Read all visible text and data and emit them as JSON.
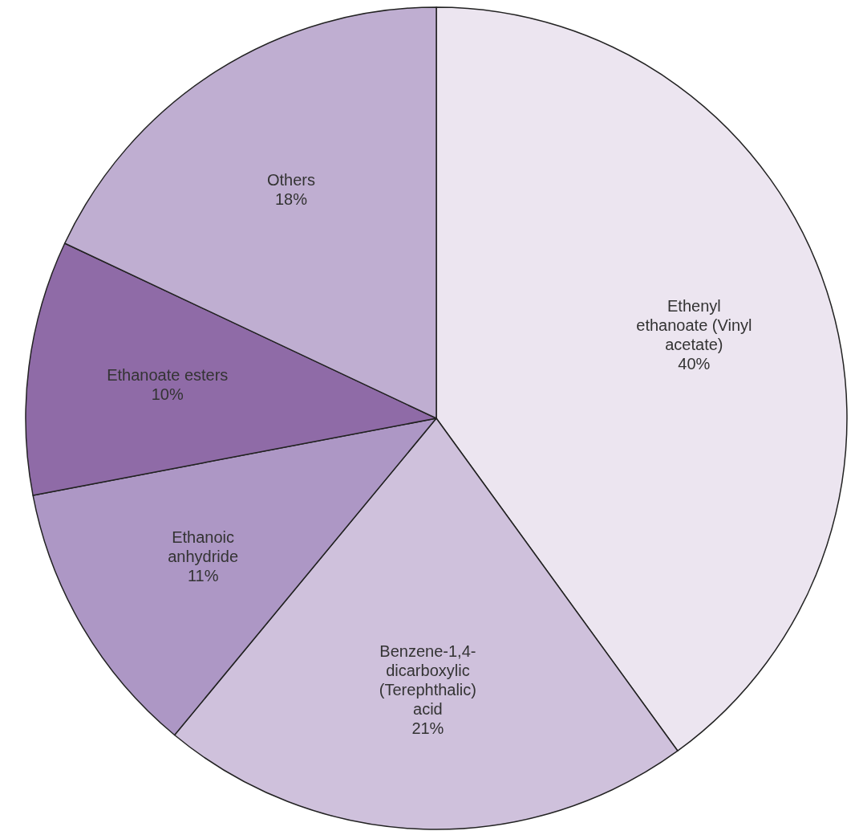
{
  "chart_data": {
    "type": "pie",
    "categories": [
      "Ethenyl ethanoate (Vinyl acetate)",
      "Benzene-1,4-dicarboxylic (Terephthalic) acid",
      "Ethanoic anhydride",
      "Ethanoate esters",
      "Others"
    ],
    "values": [
      40,
      21,
      11,
      10,
      18
    ],
    "value_labels": [
      "40%",
      "21%",
      "11%",
      "10%",
      "18%"
    ],
    "colors": [
      "#ece5f0",
      "#cfc1dc",
      "#ad97c5",
      "#8f6ba7",
      "#bfaed1"
    ]
  }
}
